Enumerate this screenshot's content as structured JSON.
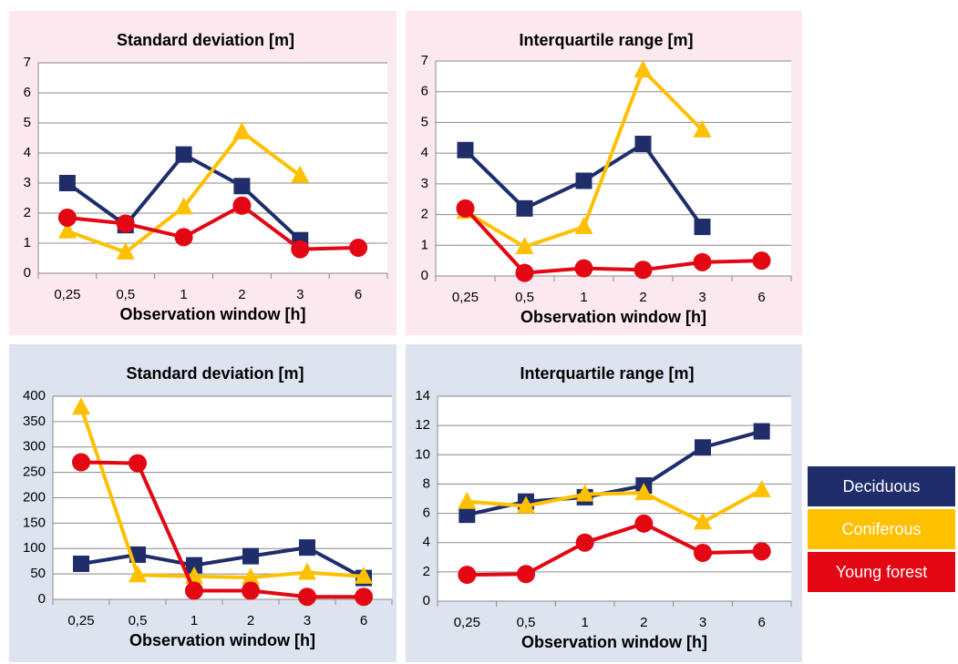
{
  "chart_data": [
    {
      "type": "line",
      "title": "Standard deviation [m]",
      "x_label": "Observation window [h]",
      "background": "#fbe9ef",
      "categories": [
        "0,25",
        "0,5",
        "1",
        "2",
        "3",
        "6"
      ],
      "ylim": [
        0,
        7
      ],
      "yticks": [
        0,
        1,
        2,
        3,
        4,
        5,
        6,
        7
      ],
      "grid": true,
      "series": [
        {
          "name": "Deciduous",
          "color": "#1f2d6b",
          "marker": "square",
          "values": [
            3.0,
            1.6,
            3.95,
            2.9,
            1.1,
            null
          ]
        },
        {
          "name": "Coniferous",
          "color": "#ffc000",
          "marker": "triangle",
          "values": [
            1.4,
            0.7,
            2.2,
            4.7,
            3.25,
            null
          ]
        },
        {
          "name": "Young forest",
          "color": "#e30613",
          "marker": "circle",
          "values": [
            1.85,
            1.65,
            1.2,
            2.25,
            0.8,
            0.85
          ]
        }
      ]
    },
    {
      "type": "line",
      "title": "Interquartile range [m]",
      "x_label": "Observation window [h]",
      "background": "#fbe9ef",
      "categories": [
        "0,25",
        "0,5",
        "1",
        "2",
        "3",
        "6"
      ],
      "ylim": [
        0,
        7
      ],
      "yticks": [
        0,
        1,
        2,
        3,
        4,
        5,
        6,
        7
      ],
      "grid": true,
      "series": [
        {
          "name": "Deciduous",
          "color": "#1f2d6b",
          "marker": "square",
          "values": [
            4.1,
            2.2,
            3.1,
            4.3,
            1.6,
            null
          ]
        },
        {
          "name": "Coniferous",
          "color": "#ffc000",
          "marker": "triangle",
          "values": [
            2.1,
            0.95,
            1.6,
            6.7,
            4.75,
            null
          ]
        },
        {
          "name": "Young forest",
          "color": "#e30613",
          "marker": "circle",
          "values": [
            2.2,
            0.1,
            0.25,
            0.2,
            0.45,
            0.5
          ]
        }
      ]
    },
    {
      "type": "line",
      "title": "Standard deviation [m]",
      "x_label": "Observation window [h]",
      "background": "#dde4f0",
      "categories": [
        "0,25",
        "0,5",
        "1",
        "2",
        "3",
        "6"
      ],
      "ylim": [
        0,
        400
      ],
      "yticks": [
        0,
        50,
        100,
        150,
        200,
        250,
        300,
        350,
        400
      ],
      "grid": true,
      "series": [
        {
          "name": "Deciduous",
          "color": "#1f2d6b",
          "marker": "square",
          "values": [
            70,
            88,
            67,
            85,
            102,
            42
          ]
        },
        {
          "name": "Coniferous",
          "color": "#ffc000",
          "marker": "triangle",
          "values": [
            378,
            48,
            45,
            43,
            53,
            45
          ]
        },
        {
          "name": "Young forest",
          "color": "#e30613",
          "marker": "circle",
          "values": [
            270,
            268,
            17,
            17,
            5,
            5
          ]
        }
      ]
    },
    {
      "type": "line",
      "title": "Interquartile range [m]",
      "x_label": "Observation window [h]",
      "background": "#dde4f0",
      "categories": [
        "0,25",
        "0,5",
        "1",
        "2",
        "3",
        "6"
      ],
      "ylim": [
        0,
        14
      ],
      "yticks": [
        0,
        2,
        4,
        6,
        8,
        10,
        12,
        14
      ],
      "grid": true,
      "series": [
        {
          "name": "Deciduous",
          "color": "#1f2d6b",
          "marker": "square",
          "values": [
            5.9,
            6.8,
            7.1,
            7.9,
            10.5,
            11.6
          ]
        },
        {
          "name": "Coniferous",
          "color": "#ffc000",
          "marker": "triangle",
          "values": [
            6.8,
            6.5,
            7.3,
            7.4,
            5.4,
            7.6
          ]
        },
        {
          "name": "Young forest",
          "color": "#e30613",
          "marker": "circle",
          "values": [
            1.8,
            1.85,
            4.0,
            5.3,
            3.3,
            3.4
          ]
        }
      ]
    }
  ]
}
